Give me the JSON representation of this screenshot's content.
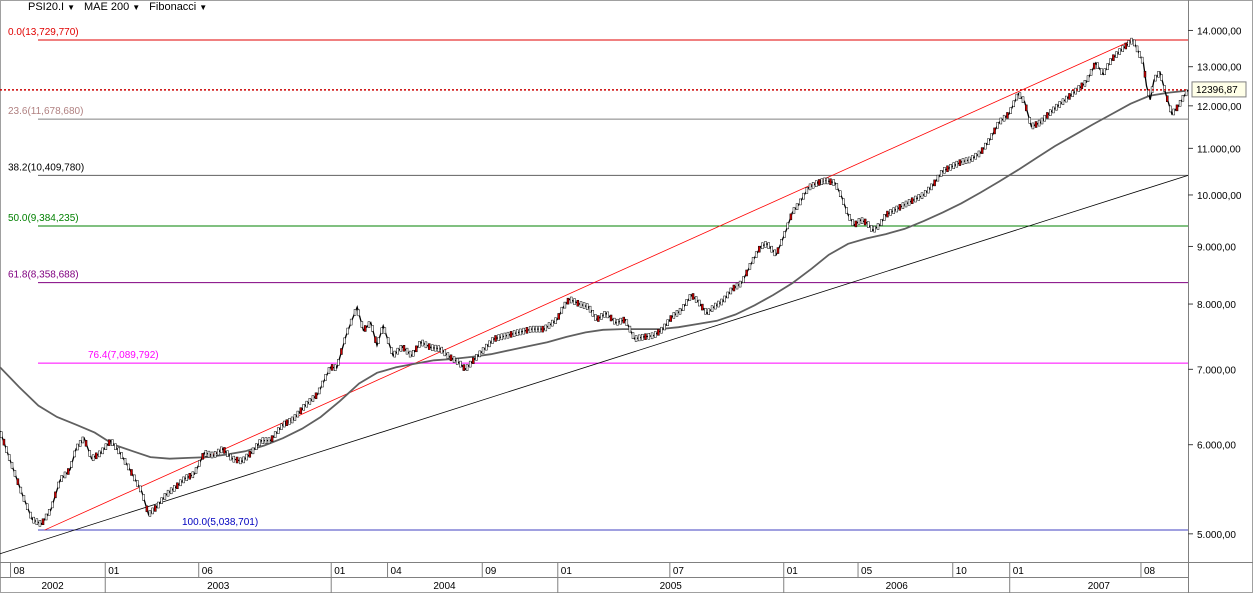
{
  "toolbar": {
    "instrument": "PSI20.I",
    "indicator": "MAE 200",
    "tool": "Fibonacci",
    "caret": "▼"
  },
  "colors": {
    "price_up": "#ffffff",
    "price_down": "#cc0000",
    "price_outline": "#000000",
    "ma": "#606060",
    "upper_trend": "#ff0000",
    "lower_trend": "#000000",
    "last_price_line": "#cc0000"
  },
  "chart_data": {
    "type": "line",
    "scale": "log",
    "ylim": [
      4720,
      14900
    ],
    "xlim": [
      "2002-07-15",
      "2007-10-16"
    ],
    "y_ticks": [
      5000,
      6000,
      7000,
      8000,
      9000,
      10000,
      11000,
      12000,
      13000,
      14000
    ],
    "y_tick_labels": [
      "5.000,00",
      "6.000,00",
      "7.000,00",
      "8.000,00",
      "9.000,00",
      "10.000,00",
      "11.000,00",
      "12.000,00",
      "13.000,00",
      "14.000,00"
    ],
    "x_month_ticks": [
      {
        "date": "2002-08-01",
        "label": "08"
      },
      {
        "date": "2003-01-01",
        "label": "01"
      },
      {
        "date": "2003-06-01",
        "label": "06"
      },
      {
        "date": "2004-01-01",
        "label": "01"
      },
      {
        "date": "2004-04-01",
        "label": "04"
      },
      {
        "date": "2004-09-01",
        "label": "09"
      },
      {
        "date": "2005-01-01",
        "label": "01"
      },
      {
        "date": "2005-07-01",
        "label": "07"
      },
      {
        "date": "2006-01-01",
        "label": "01"
      },
      {
        "date": "2006-05-01",
        "label": "05"
      },
      {
        "date": "2006-10-01",
        "label": "10"
      },
      {
        "date": "2007-01-01",
        "label": "01"
      },
      {
        "date": "2007-08-01",
        "label": "08"
      }
    ],
    "x_year_ticks": [
      {
        "date": "2002-07-15",
        "label": "2002"
      },
      {
        "date": "2003-01-01",
        "label": "2003"
      },
      {
        "date": "2004-01-01",
        "label": "2004"
      },
      {
        "date": "2005-01-01",
        "label": "2005"
      },
      {
        "date": "2006-01-01",
        "label": "2006"
      },
      {
        "date": "2007-01-01",
        "label": "2007"
      }
    ],
    "fibonacci_levels": [
      {
        "label": "0.0(13,729,770)",
        "value": 13729.77,
        "color": "#e00000",
        "text_color": "#e00000"
      },
      {
        "label": "23.6(11,678,680)",
        "value": 11678.68,
        "color": "#808080",
        "text_color": "#b08080"
      },
      {
        "label": "38.2(10,409,780)",
        "value": 10409.78,
        "color": "#606060",
        "text_color": "#000000"
      },
      {
        "label": "50.0(9,384,235)",
        "value": 9384.235,
        "color": "#008000",
        "text_color": "#008000"
      },
      {
        "label": "61.8(8,358,688)",
        "value": 8358.688,
        "color": "#800080",
        "text_color": "#800080"
      },
      {
        "label": "76.4(7,089,792)",
        "value": 7089.792,
        "color": "#ff00ff",
        "text_color": "#ff00ff"
      },
      {
        "label": "100.0(5,038,701)",
        "value": 5038.701,
        "color": "#4040c0",
        "text_color": "#0000c0"
      }
    ],
    "last_price": {
      "value": 12396.87,
      "label": "12396,87"
    },
    "series": [
      {
        "role": "price",
        "points": [
          [
            "2002-07-15",
            6170
          ],
          [
            "2002-08-01",
            5800
          ],
          [
            "2002-08-20",
            5420
          ],
          [
            "2002-09-05",
            5150
          ],
          [
            "2002-09-20",
            5100
          ],
          [
            "2002-10-05",
            5250
          ],
          [
            "2002-10-20",
            5580
          ],
          [
            "2002-11-05",
            5700
          ],
          [
            "2002-11-15",
            5950
          ],
          [
            "2002-11-28",
            6080
          ],
          [
            "2002-12-10",
            5830
          ],
          [
            "2002-12-25",
            5900
          ],
          [
            "2003-01-10",
            6050
          ],
          [
            "2003-01-25",
            5900
          ],
          [
            "2003-02-10",
            5700
          ],
          [
            "2003-03-01",
            5450
          ],
          [
            "2003-03-12",
            5200
          ],
          [
            "2003-03-25",
            5280
          ],
          [
            "2003-04-10",
            5420
          ],
          [
            "2003-04-25",
            5500
          ],
          [
            "2003-05-10",
            5600
          ],
          [
            "2003-05-25",
            5650
          ],
          [
            "2003-06-10",
            5900
          ],
          [
            "2003-06-25",
            5870
          ],
          [
            "2003-07-10",
            5950
          ],
          [
            "2003-07-25",
            5830
          ],
          [
            "2003-08-10",
            5800
          ],
          [
            "2003-08-25",
            5900
          ],
          [
            "2003-09-10",
            6050
          ],
          [
            "2003-09-25",
            6050
          ],
          [
            "2003-10-15",
            6250
          ],
          [
            "2003-11-01",
            6320
          ],
          [
            "2003-11-20",
            6500
          ],
          [
            "2003-12-10",
            6650
          ],
          [
            "2003-12-31",
            7030
          ],
          [
            "2004-01-10",
            7020
          ],
          [
            "2004-01-25",
            7500
          ],
          [
            "2004-02-05",
            7780
          ],
          [
            "2004-02-12",
            7950
          ],
          [
            "2004-02-22",
            7580
          ],
          [
            "2004-03-05",
            7700
          ],
          [
            "2004-03-15",
            7350
          ],
          [
            "2004-03-25",
            7650
          ],
          [
            "2004-04-10",
            7200
          ],
          [
            "2004-04-25",
            7330
          ],
          [
            "2004-05-10",
            7200
          ],
          [
            "2004-05-25",
            7400
          ],
          [
            "2004-06-10",
            7320
          ],
          [
            "2004-06-25",
            7300
          ],
          [
            "2004-07-10",
            7180
          ],
          [
            "2004-07-25",
            7100
          ],
          [
            "2004-08-05",
            7000
          ],
          [
            "2004-08-20",
            7150
          ],
          [
            "2004-09-05",
            7300
          ],
          [
            "2004-09-20",
            7450
          ],
          [
            "2004-10-10",
            7500
          ],
          [
            "2004-10-30",
            7550
          ],
          [
            "2004-11-20",
            7600
          ],
          [
            "2004-12-10",
            7600
          ],
          [
            "2004-12-31",
            7750
          ],
          [
            "2005-01-10",
            7950
          ],
          [
            "2005-01-20",
            8080
          ],
          [
            "2005-02-05",
            8000
          ],
          [
            "2005-02-20",
            7950
          ],
          [
            "2005-03-05",
            7750
          ],
          [
            "2005-03-20",
            7850
          ],
          [
            "2005-04-05",
            7700
          ],
          [
            "2005-04-20",
            7750
          ],
          [
            "2005-05-05",
            7450
          ],
          [
            "2005-05-20",
            7480
          ],
          [
            "2005-06-05",
            7500
          ],
          [
            "2005-06-20",
            7600
          ],
          [
            "2005-07-05",
            7800
          ],
          [
            "2005-07-20",
            7900
          ],
          [
            "2005-08-05",
            8150
          ],
          [
            "2005-08-15",
            8050
          ],
          [
            "2005-08-30",
            7850
          ],
          [
            "2005-09-10",
            7950
          ],
          [
            "2005-09-25",
            8050
          ],
          [
            "2005-10-10",
            8250
          ],
          [
            "2005-10-25",
            8350
          ],
          [
            "2005-11-10",
            8700
          ],
          [
            "2005-11-25",
            9000
          ],
          [
            "2005-12-05",
            9050
          ],
          [
            "2005-12-20",
            8850
          ],
          [
            "2006-01-05",
            9300
          ],
          [
            "2006-01-15",
            9650
          ],
          [
            "2006-01-25",
            9800
          ],
          [
            "2006-02-10",
            10150
          ],
          [
            "2006-02-25",
            10250
          ],
          [
            "2006-03-10",
            10300
          ],
          [
            "2006-03-25",
            10250
          ],
          [
            "2006-04-05",
            9950
          ],
          [
            "2006-04-15",
            9600
          ],
          [
            "2006-04-25",
            9400
          ],
          [
            "2006-05-05",
            9500
          ],
          [
            "2006-05-15",
            9450
          ],
          [
            "2006-05-25",
            9300
          ],
          [
            "2006-06-05",
            9400
          ],
          [
            "2006-06-15",
            9600
          ],
          [
            "2006-06-30",
            9700
          ],
          [
            "2006-07-15",
            9800
          ],
          [
            "2006-07-30",
            9900
          ],
          [
            "2006-08-15",
            10000
          ],
          [
            "2006-08-30",
            10200
          ],
          [
            "2006-09-15",
            10500
          ],
          [
            "2006-09-30",
            10600
          ],
          [
            "2006-10-15",
            10700
          ],
          [
            "2006-10-30",
            10750
          ],
          [
            "2006-11-15",
            10900
          ],
          [
            "2006-11-30",
            11200
          ],
          [
            "2006-12-15",
            11600
          ],
          [
            "2006-12-31",
            11800
          ],
          [
            "2007-01-15",
            12300
          ],
          [
            "2007-01-25",
            12100
          ],
          [
            "2007-02-05",
            11500
          ],
          [
            "2007-02-20",
            11600
          ],
          [
            "2007-03-05",
            11800
          ],
          [
            "2007-03-20",
            12000
          ],
          [
            "2007-04-05",
            12200
          ],
          [
            "2007-04-20",
            12400
          ],
          [
            "2007-05-05",
            12600
          ],
          [
            "2007-05-20",
            13100
          ],
          [
            "2007-06-01",
            12800
          ],
          [
            "2007-06-15",
            13200
          ],
          [
            "2007-06-30",
            13450
          ],
          [
            "2007-07-10",
            13600
          ],
          [
            "2007-07-19",
            13730
          ],
          [
            "2007-07-28",
            13400
          ],
          [
            "2007-08-05",
            13100
          ],
          [
            "2007-08-10",
            12500
          ],
          [
            "2007-08-16",
            12150
          ],
          [
            "2007-08-22",
            12650
          ],
          [
            "2007-09-01",
            12850
          ],
          [
            "2007-09-10",
            12300
          ],
          [
            "2007-09-20",
            11800
          ],
          [
            "2007-10-01",
            12000
          ],
          [
            "2007-10-10",
            12250
          ],
          [
            "2007-10-16",
            12397
          ]
        ]
      },
      {
        "role": "moving-average",
        "name": "MAE 200",
        "points": [
          [
            "2002-07-15",
            7030
          ],
          [
            "2002-08-15",
            6750
          ],
          [
            "2002-09-15",
            6500
          ],
          [
            "2002-10-15",
            6350
          ],
          [
            "2002-11-15",
            6250
          ],
          [
            "2002-12-15",
            6150
          ],
          [
            "2003-01-15",
            6000
          ],
          [
            "2003-02-15",
            5920
          ],
          [
            "2003-03-15",
            5850
          ],
          [
            "2003-04-15",
            5830
          ],
          [
            "2003-05-15",
            5840
          ],
          [
            "2003-06-15",
            5850
          ],
          [
            "2003-07-15",
            5880
          ],
          [
            "2003-08-15",
            5920
          ],
          [
            "2003-09-15",
            5990
          ],
          [
            "2003-10-15",
            6080
          ],
          [
            "2003-11-15",
            6200
          ],
          [
            "2003-12-15",
            6350
          ],
          [
            "2004-01-15",
            6560
          ],
          [
            "2004-02-15",
            6800
          ],
          [
            "2004-03-15",
            6950
          ],
          [
            "2004-04-15",
            7030
          ],
          [
            "2004-05-15",
            7080
          ],
          [
            "2004-06-15",
            7130
          ],
          [
            "2004-07-15",
            7150
          ],
          [
            "2004-08-15",
            7180
          ],
          [
            "2004-09-15",
            7220
          ],
          [
            "2004-10-15",
            7280
          ],
          [
            "2004-11-15",
            7340
          ],
          [
            "2004-12-15",
            7400
          ],
          [
            "2005-01-15",
            7480
          ],
          [
            "2005-02-15",
            7550
          ],
          [
            "2005-03-15",
            7590
          ],
          [
            "2005-04-15",
            7600
          ],
          [
            "2005-05-15",
            7600
          ],
          [
            "2005-06-15",
            7600
          ],
          [
            "2005-07-15",
            7630
          ],
          [
            "2005-08-15",
            7680
          ],
          [
            "2005-09-15",
            7730
          ],
          [
            "2005-10-15",
            7830
          ],
          [
            "2005-11-15",
            7980
          ],
          [
            "2005-12-15",
            8150
          ],
          [
            "2006-01-15",
            8350
          ],
          [
            "2006-02-15",
            8600
          ],
          [
            "2006-03-15",
            8850
          ],
          [
            "2006-04-15",
            9050
          ],
          [
            "2006-05-15",
            9150
          ],
          [
            "2006-06-15",
            9230
          ],
          [
            "2006-07-15",
            9330
          ],
          [
            "2006-08-15",
            9480
          ],
          [
            "2006-09-15",
            9650
          ],
          [
            "2006-10-15",
            9830
          ],
          [
            "2006-11-15",
            10050
          ],
          [
            "2006-12-15",
            10280
          ],
          [
            "2007-01-15",
            10530
          ],
          [
            "2007-02-15",
            10800
          ],
          [
            "2007-03-15",
            11050
          ],
          [
            "2007-04-15",
            11300
          ],
          [
            "2007-05-15",
            11550
          ],
          [
            "2007-06-15",
            11800
          ],
          [
            "2007-07-15",
            12050
          ],
          [
            "2007-08-15",
            12250
          ],
          [
            "2007-09-15",
            12330
          ],
          [
            "2007-10-16",
            12380
          ]
        ]
      }
    ],
    "trendlines": [
      {
        "role": "upper",
        "from": [
          "2002-09-25",
          5038.701
        ],
        "to": [
          "2007-07-19",
          13729.77
        ]
      },
      {
        "role": "lower",
        "from": [
          "2002-07-15",
          4800
        ],
        "to": [
          "2007-10-16",
          10409.78
        ]
      }
    ]
  }
}
